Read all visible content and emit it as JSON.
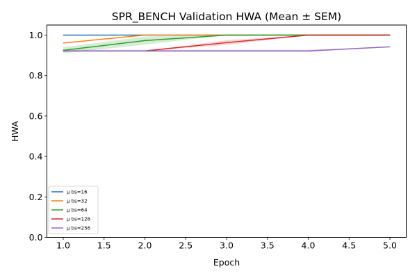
{
  "chart_data": {
    "type": "line",
    "title": "SPR_BENCH Validation HWA (Mean ± SEM)",
    "xlabel": "Epoch",
    "ylabel": "HWA",
    "xlim": [
      0.8,
      5.2
    ],
    "ylim": [
      0.0,
      1.05
    ],
    "xticks": [
      "1.0",
      "1.5",
      "2.0",
      "2.5",
      "3.0",
      "3.5",
      "4.0",
      "4.5",
      "5.0"
    ],
    "yticks": [
      "0.0",
      "0.2",
      "0.4",
      "0.6",
      "0.8",
      "1.0"
    ],
    "legend_position": "lower-left",
    "grid": false,
    "x": [
      1,
      2,
      3,
      4,
      5
    ],
    "series": [
      {
        "name": "μ bs=16",
        "color": "#1f77b4",
        "values": [
          1.0,
          1.0,
          1.0,
          1.0,
          1.0
        ],
        "sem": [
          0.0,
          0.0,
          0.0,
          0.0,
          0.0
        ]
      },
      {
        "name": "μ bs=32",
        "color": "#ff7f0e",
        "values": [
          0.961,
          1.0,
          1.0,
          1.0,
          1.0
        ],
        "sem": [
          0.0,
          0.0,
          0.0,
          0.0,
          0.0
        ]
      },
      {
        "name": "μ bs=64",
        "color": "#2ca02c",
        "values": [
          0.925,
          0.973,
          1.0,
          1.0,
          1.0
        ],
        "sem": [
          0.015,
          0.02,
          0.0,
          0.0,
          0.0
        ]
      },
      {
        "name": "μ bs=128",
        "color": "#d62728",
        "values": [
          0.922,
          0.922,
          0.963,
          1.0,
          1.0
        ],
        "sem": [
          0.0,
          0.0,
          0.012,
          0.0,
          0.0
        ]
      },
      {
        "name": "μ bs=256",
        "color": "#9467bd",
        "values": [
          0.922,
          0.922,
          0.922,
          0.922,
          0.942
        ],
        "sem": [
          0.006,
          0.006,
          0.006,
          0.006,
          0.0
        ]
      }
    ]
  }
}
